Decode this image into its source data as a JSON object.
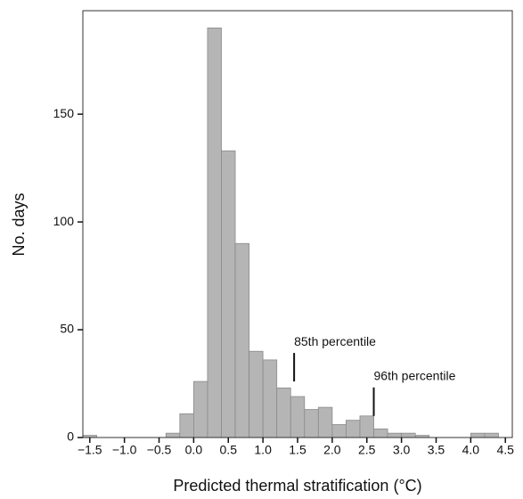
{
  "chart_data": {
    "type": "histogram",
    "xlabel": "Predicted thermal stratification (°C)",
    "ylabel": "No. days",
    "bins": [
      -1.6,
      -1.4,
      -1.2,
      -1.0,
      -0.8,
      -0.6,
      -0.4,
      -0.2,
      0.0,
      0.2,
      0.4,
      0.6,
      0.8,
      1.0,
      1.2,
      1.4,
      1.6,
      1.8,
      2.0,
      2.2,
      2.4,
      2.6,
      2.8,
      3.0,
      3.2,
      3.4,
      3.6,
      3.8,
      4.0,
      4.2,
      4.4,
      4.6
    ],
    "values": [
      1,
      0,
      0,
      0,
      0,
      0,
      2,
      11,
      26,
      190,
      133,
      90,
      40,
      36,
      23,
      19,
      13,
      14,
      6,
      8,
      10,
      4,
      2,
      2,
      1,
      0,
      0,
      0,
      2,
      2,
      0
    ],
    "color": "#b5b5b5",
    "xlim": [
      -1.6,
      4.6
    ],
    "ylim": [
      0,
      198
    ],
    "xticks": [
      {
        "value": -1.5,
        "label": "−1.5"
      },
      {
        "value": -1.0,
        "label": "−1.0"
      },
      {
        "value": -0.5,
        "label": "−0.5"
      },
      {
        "value": 0,
        "label": "0.0"
      },
      0.5,
      {
        "value": 1,
        "label": "1.0"
      },
      1.5,
      {
        "value": 2,
        "label": "2.0"
      },
      2.5,
      {
        "value": 3,
        "label": "3.0"
      },
      3.5,
      {
        "value": 4,
        "label": "4.0"
      },
      4.5
    ],
    "yticks": [
      0,
      50,
      100,
      150
    ],
    "annotations": [
      {
        "text": "85th percentile",
        "x": 1.45,
        "y": 26
      },
      {
        "text": "96th percentile",
        "x": 2.6,
        "y": 10
      }
    ]
  }
}
